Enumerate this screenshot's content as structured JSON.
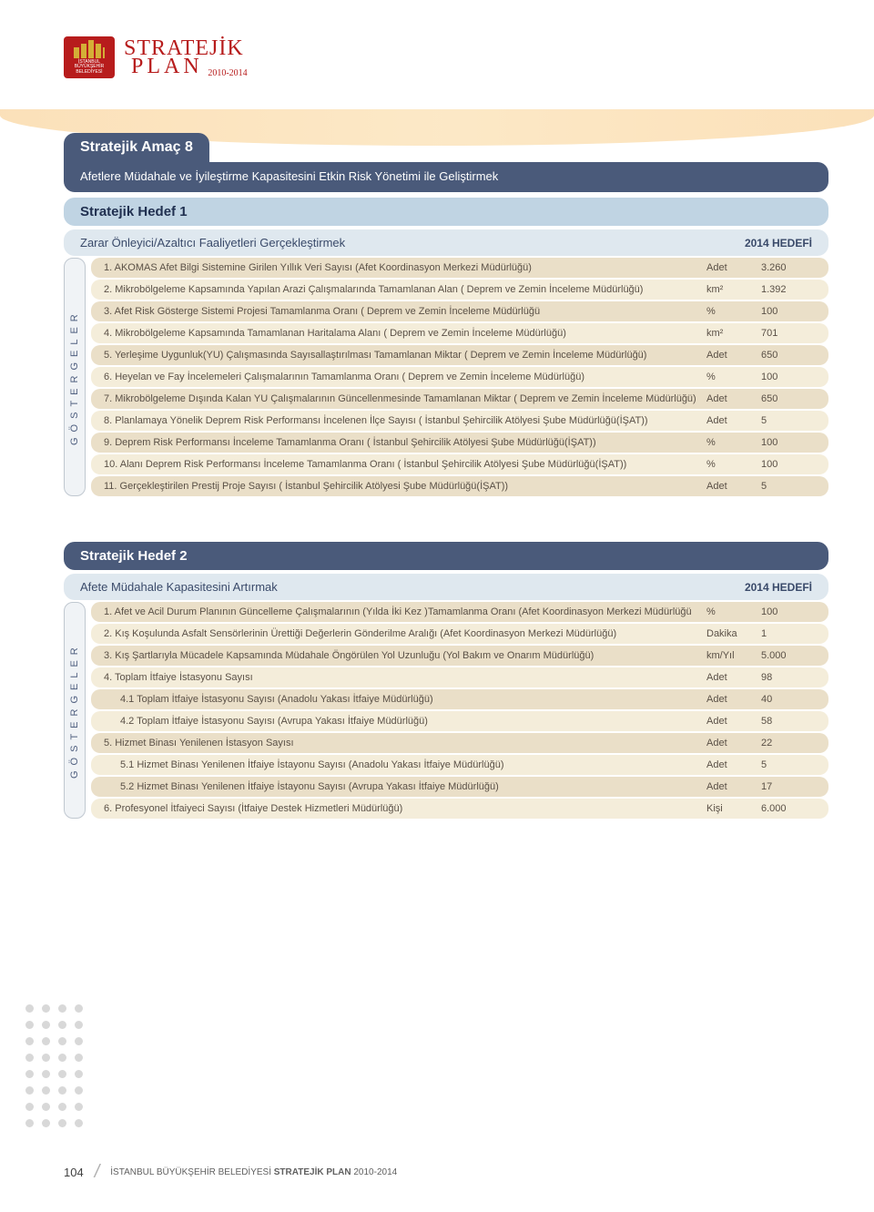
{
  "colors": {
    "brand_red": "#b71c1c",
    "header_navy": "#4a5a7a",
    "hedef_bg": "#c0d4e3",
    "hedef_desc_bg": "#dfe8ef",
    "row_odd": "#eadfc8",
    "row_even": "#f4edda",
    "text_row": "#5a5046"
  },
  "logo": {
    "istanbul": "İSTANBUL",
    "buyuksehir": "BÜYÜKŞEHİR",
    "belediyesi": "BELEDİYESİ",
    "stratejik": "STRATEJİK",
    "plan": "PLAN",
    "years": "2010-2014"
  },
  "amac": {
    "title": "Stratejik Amaç 8",
    "desc": "Afetlere Müdahale ve İyileştirme Kapasitesini Etkin Risk Yönetimi ile Geliştirmek"
  },
  "hedef1": {
    "title": "Stratejik Hedef 1",
    "desc": "Zarar Önleyici/Azaltıcı Faaliyetleri Gerçekleştirmek",
    "badge": "2014 HEDEFİ",
    "sidebar": "GÖSTERGELER",
    "rows": [
      {
        "label": "1. AKOMAS Afet Bilgi Sistemine Girilen Yıllık Veri Sayısı (Afet Koordinasyon Merkezi Müdürlüğü)",
        "unit": "Adet",
        "value": "3.260"
      },
      {
        "label": "2. Mikrobölgeleme Kapsamında Yapılan Arazi Çalışmalarında Tamamlanan Alan ( Deprem ve Zemin İnceleme Müdürlüğü)",
        "unit": "km²",
        "value": "1.392"
      },
      {
        "label": "3. Afet Risk Gösterge Sistemi Projesi Tamamlanma Oranı ( Deprem ve Zemin İnceleme Müdürlüğü",
        "unit": "%",
        "value": "100"
      },
      {
        "label": "4. Mikrobölgeleme Kapsamında Tamamlanan Haritalama Alanı ( Deprem ve Zemin İnceleme Müdürlüğü)",
        "unit": "km²",
        "value": "701"
      },
      {
        "label": "5. Yerleşime Uygunluk(YU) Çalışmasında Sayısallaştırılması Tamamlanan Miktar ( Deprem ve Zemin İnceleme Müdürlüğü)",
        "unit": "Adet",
        "value": "650"
      },
      {
        "label": "6. Heyelan ve Fay İncelemeleri Çalışmalarının Tamamlanma Oranı ( Deprem ve Zemin İnceleme Müdürlüğü)",
        "unit": "%",
        "value": "100"
      },
      {
        "label": "7. Mikrobölgeleme Dışında Kalan YU Çalışmalarının Güncellenmesinde Tamamlanan Miktar ( Deprem ve Zemin İnceleme Müdürlüğü)",
        "unit": "Adet",
        "value": "650"
      },
      {
        "label": "8. Planlamaya Yönelik Deprem Risk Performansı İncelenen İlçe Sayısı ( İstanbul Şehircilik Atölyesi Şube Müdürlüğü(İŞAT))",
        "unit": "Adet",
        "value": "5"
      },
      {
        "label": "9. Deprem Risk Performansı İnceleme Tamamlanma Oranı ( İstanbul Şehircilik Atölyesi Şube Müdürlüğü(İŞAT))",
        "unit": "%",
        "value": "100"
      },
      {
        "label": "10. Alanı Deprem Risk Performansı İnceleme Tamamlanma Oranı ( İstanbul Şehircilik Atölyesi Şube Müdürlüğü(İŞAT))",
        "unit": "%",
        "value": "100"
      },
      {
        "label": "11. Gerçekleştirilen Prestij Proje Sayısı ( İstanbul Şehircilik Atölyesi Şube Müdürlüğü(İŞAT))",
        "unit": "Adet",
        "value": "5"
      }
    ]
  },
  "hedef2": {
    "title": "Stratejik Hedef 2",
    "desc": "Afete Müdahale Kapasitesini Artırmak",
    "badge": "2014 HEDEFİ",
    "sidebar": "GÖSTERGELER",
    "rows": [
      {
        "label": "1. Afet ve Acil Durum Planının Güncelleme Çalışmalarının (Yılda İki Kez )Tamamlanma Oranı (Afet Koordinasyon Merkezi Müdürlüğü",
        "unit": "%",
        "value": "100"
      },
      {
        "label": "2. Kış Koşulunda Asfalt Sensörlerinin Ürettiği Değerlerin Gönderilme Aralığı (Afet Koordinasyon Merkezi Müdürlüğü)",
        "unit": "Dakika",
        "value": "1"
      },
      {
        "label": "3. Kış Şartlarıyla Mücadele Kapsamında Müdahale Öngörülen Yol Uzunluğu (Yol Bakım ve Onarım Müdürlüğü)",
        "unit": "km/Yıl",
        "value": "5.000"
      },
      {
        "label": "4. Toplam İtfaiye İstasyonu Sayısı",
        "unit": "Adet",
        "value": "98"
      },
      {
        "label": "4.1  Toplam İtfaiye İstasyonu Sayısı (Anadolu Yakası İtfaiye Müdürlüğü)",
        "unit": "Adet",
        "value": "40",
        "sub": true
      },
      {
        "label": "4.2  Toplam İtfaiye İstasyonu Sayısı (Avrupa Yakası İtfaiye Müdürlüğü)",
        "unit": "Adet",
        "value": "58",
        "sub": true
      },
      {
        "label": "5. Hizmet Binası Yenilenen İstasyon Sayısı",
        "unit": "Adet",
        "value": "22"
      },
      {
        "label": "5.1  Hizmet Binası Yenilenen İtfaiye İstayonu Sayısı (Anadolu Yakası İtfaiye Müdürlüğü)",
        "unit": "Adet",
        "value": "5",
        "sub": true
      },
      {
        "label": "5.2  Hizmet Binası Yenilenen İtfaiye İstayonu Sayısı (Avrupa Yakası İtfaiye Müdürlüğü)",
        "unit": "Adet",
        "value": "17",
        "sub": true
      },
      {
        "label": "6. Profesyonel İtfaiyeci Sayısı (İtfaiye Destek Hizmetleri Müdürlüğü)",
        "unit": "Kişi",
        "value": "6.000"
      }
    ]
  },
  "footer": {
    "page": "104",
    "text1": "İSTANBUL BÜYÜKŞEHİR BELEDİYESİ ",
    "text2": "STRATEJİK PLAN ",
    "text3": "2010-2014"
  }
}
